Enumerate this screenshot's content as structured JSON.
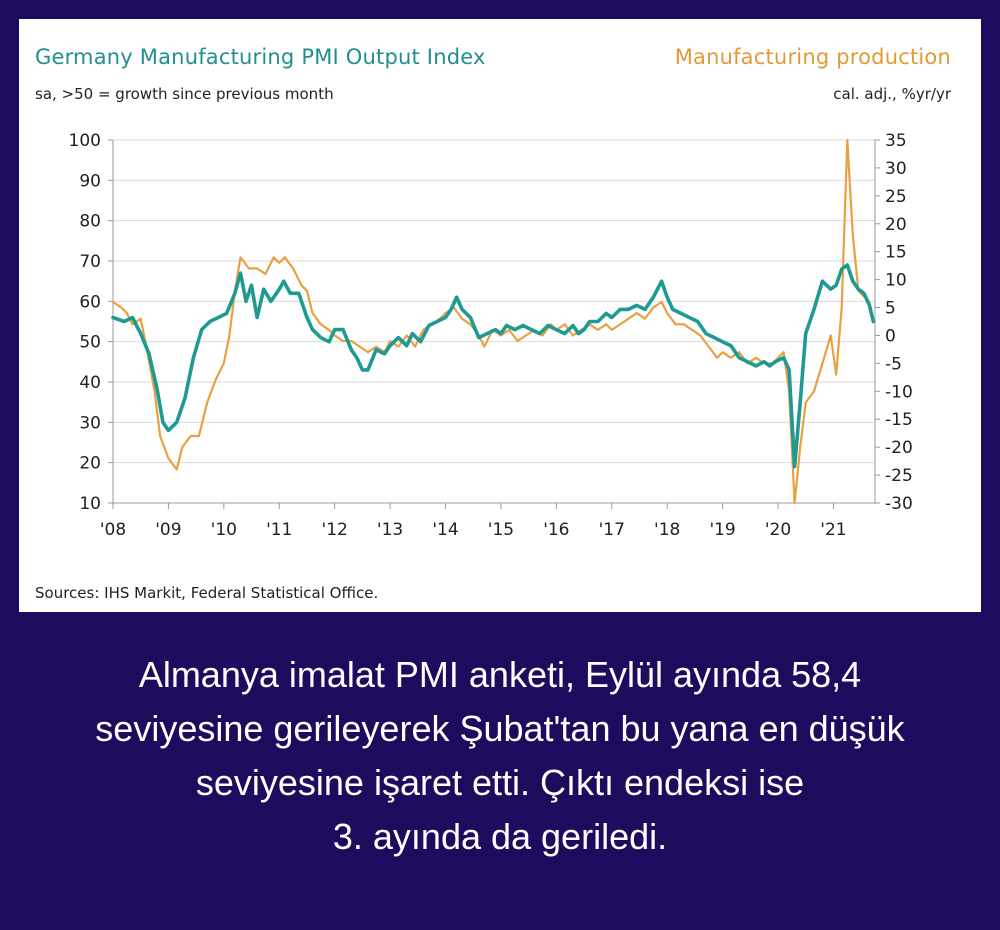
{
  "chart_data": {
    "type": "line",
    "title": "Germany Manufacturing PMI Output Index",
    "subtitle": "sa, >50 = growth since previous month",
    "title_right": "Manufacturing production",
    "subtitle_right": "cal. adj., %yr/yr",
    "source": "Sources: IHS Markit, Federal Statistical Office.",
    "x_range": [
      2008.0,
      2021.75
    ],
    "y_left": {
      "range": [
        10,
        100
      ],
      "ticks": [
        100,
        90,
        80,
        70,
        60,
        50,
        40,
        30,
        20,
        10
      ]
    },
    "y_right": {
      "range": [
        -30,
        35
      ],
      "ticks": [
        35,
        30,
        25,
        20,
        15,
        10,
        5,
        0,
        -5,
        -10,
        -15,
        -20,
        -25,
        -30
      ]
    },
    "x_ticks": [
      "'08",
      "'09",
      "'10",
      "'11",
      "'12",
      "'13",
      "'14",
      "'15",
      "'16",
      "'17",
      "'18",
      "'19",
      "'20",
      "'21"
    ],
    "grid": true,
    "series": [
      {
        "name": "Germany Manufacturing PMI Output Index",
        "axis": "left",
        "color": "#1f9a93",
        "points": [
          [
            2008.0,
            56
          ],
          [
            2008.2,
            55
          ],
          [
            2008.35,
            56
          ],
          [
            2008.5,
            52
          ],
          [
            2008.65,
            47
          ],
          [
            2008.8,
            38
          ],
          [
            2008.9,
            30
          ],
          [
            2009.0,
            28
          ],
          [
            2009.15,
            30
          ],
          [
            2009.3,
            36
          ],
          [
            2009.45,
            46
          ],
          [
            2009.6,
            53
          ],
          [
            2009.75,
            55
          ],
          [
            2009.9,
            56
          ],
          [
            2010.05,
            57
          ],
          [
            2010.2,
            62
          ],
          [
            2010.3,
            67
          ],
          [
            2010.4,
            60
          ],
          [
            2010.5,
            64
          ],
          [
            2010.6,
            56
          ],
          [
            2010.72,
            63
          ],
          [
            2010.85,
            60
          ],
          [
            2011.0,
            63
          ],
          [
            2011.08,
            65
          ],
          [
            2011.2,
            62
          ],
          [
            2011.35,
            62
          ],
          [
            2011.5,
            56
          ],
          [
            2011.6,
            53
          ],
          [
            2011.75,
            51
          ],
          [
            2011.9,
            50
          ],
          [
            2012.0,
            53
          ],
          [
            2012.15,
            53
          ],
          [
            2012.3,
            48
          ],
          [
            2012.4,
            46
          ],
          [
            2012.5,
            43
          ],
          [
            2012.6,
            43
          ],
          [
            2012.75,
            48
          ],
          [
            2012.9,
            47
          ],
          [
            2013.0,
            49
          ],
          [
            2013.15,
            51
          ],
          [
            2013.3,
            49
          ],
          [
            2013.4,
            52
          ],
          [
            2013.55,
            50
          ],
          [
            2013.7,
            54
          ],
          [
            2013.85,
            55
          ],
          [
            2014.0,
            56
          ],
          [
            2014.1,
            58
          ],
          [
            2014.2,
            61
          ],
          [
            2014.3,
            58
          ],
          [
            2014.45,
            56
          ],
          [
            2014.6,
            51
          ],
          [
            2014.75,
            52
          ],
          [
            2014.9,
            53
          ],
          [
            2015.0,
            52
          ],
          [
            2015.1,
            54
          ],
          [
            2015.25,
            53
          ],
          [
            2015.4,
            54
          ],
          [
            2015.55,
            53
          ],
          [
            2015.7,
            52
          ],
          [
            2015.85,
            54
          ],
          [
            2016.0,
            53
          ],
          [
            2016.15,
            52
          ],
          [
            2016.3,
            54
          ],
          [
            2016.4,
            52
          ],
          [
            2016.5,
            53
          ],
          [
            2016.6,
            55
          ],
          [
            2016.75,
            55
          ],
          [
            2016.9,
            57
          ],
          [
            2017.0,
            56
          ],
          [
            2017.15,
            58
          ],
          [
            2017.3,
            58
          ],
          [
            2017.45,
            59
          ],
          [
            2017.6,
            58
          ],
          [
            2017.75,
            61
          ],
          [
            2017.9,
            65
          ],
          [
            2018.0,
            61
          ],
          [
            2018.1,
            58
          ],
          [
            2018.25,
            57
          ],
          [
            2018.4,
            56
          ],
          [
            2018.55,
            55
          ],
          [
            2018.7,
            52
          ],
          [
            2018.85,
            51
          ],
          [
            2019.0,
            50
          ],
          [
            2019.15,
            49
          ],
          [
            2019.3,
            46
          ],
          [
            2019.45,
            45
          ],
          [
            2019.6,
            44
          ],
          [
            2019.75,
            45
          ],
          [
            2019.85,
            44
          ],
          [
            2019.95,
            45
          ],
          [
            2020.1,
            46
          ],
          [
            2020.2,
            43
          ],
          [
            2020.3,
            19
          ],
          [
            2020.4,
            35
          ],
          [
            2020.5,
            52
          ],
          [
            2020.65,
            58
          ],
          [
            2020.8,
            65
          ],
          [
            2020.95,
            63
          ],
          [
            2021.05,
            64
          ],
          [
            2021.15,
            68
          ],
          [
            2021.25,
            69
          ],
          [
            2021.35,
            65
          ],
          [
            2021.45,
            63
          ],
          [
            2021.55,
            62
          ],
          [
            2021.65,
            59
          ],
          [
            2021.72,
            55
          ]
        ]
      },
      {
        "name": "Manufacturing production",
        "axis": "right",
        "color": "#e8a040",
        "points": [
          [
            2008.0,
            6
          ],
          [
            2008.15,
            5
          ],
          [
            2008.25,
            4
          ],
          [
            2008.35,
            2
          ],
          [
            2008.5,
            3
          ],
          [
            2008.6,
            -2
          ],
          [
            2008.75,
            -10
          ],
          [
            2008.85,
            -18
          ],
          [
            2009.0,
            -22
          ],
          [
            2009.15,
            -24
          ],
          [
            2009.25,
            -20
          ],
          [
            2009.4,
            -18
          ],
          [
            2009.55,
            -18
          ],
          [
            2009.7,
            -12
          ],
          [
            2009.85,
            -8
          ],
          [
            2010.0,
            -5
          ],
          [
            2010.1,
            0
          ],
          [
            2010.2,
            8
          ],
          [
            2010.3,
            14
          ],
          [
            2010.45,
            12
          ],
          [
            2010.6,
            12
          ],
          [
            2010.75,
            11
          ],
          [
            2010.9,
            14
          ],
          [
            2011.0,
            13
          ],
          [
            2011.1,
            14
          ],
          [
            2011.25,
            12
          ],
          [
            2011.4,
            9
          ],
          [
            2011.5,
            8
          ],
          [
            2011.6,
            4
          ],
          [
            2011.75,
            2
          ],
          [
            2011.9,
            1
          ],
          [
            2012.0,
            0
          ],
          [
            2012.15,
            -1
          ],
          [
            2012.3,
            -1
          ],
          [
            2012.45,
            -2
          ],
          [
            2012.6,
            -3
          ],
          [
            2012.75,
            -2
          ],
          [
            2012.9,
            -3
          ],
          [
            2013.0,
            -1
          ],
          [
            2013.15,
            -2
          ],
          [
            2013.3,
            0
          ],
          [
            2013.45,
            -2
          ],
          [
            2013.6,
            1
          ],
          [
            2013.75,
            2
          ],
          [
            2013.9,
            3
          ],
          [
            2014.0,
            4
          ],
          [
            2014.15,
            5
          ],
          [
            2014.3,
            3
          ],
          [
            2014.45,
            2
          ],
          [
            2014.6,
            0
          ],
          [
            2014.7,
            -2
          ],
          [
            2014.85,
            1
          ],
          [
            2015.0,
            0
          ],
          [
            2015.15,
            1
          ],
          [
            2015.3,
            -1
          ],
          [
            2015.45,
            0
          ],
          [
            2015.6,
            1
          ],
          [
            2015.75,
            0
          ],
          [
            2015.9,
            2
          ],
          [
            2016.0,
            1
          ],
          [
            2016.15,
            2
          ],
          [
            2016.3,
            0
          ],
          [
            2016.45,
            1
          ],
          [
            2016.6,
            2
          ],
          [
            2016.75,
            1
          ],
          [
            2016.9,
            2
          ],
          [
            2017.0,
            1
          ],
          [
            2017.15,
            2
          ],
          [
            2017.3,
            3
          ],
          [
            2017.45,
            4
          ],
          [
            2017.6,
            3
          ],
          [
            2017.75,
            5
          ],
          [
            2017.9,
            6
          ],
          [
            2018.0,
            4
          ],
          [
            2018.15,
            2
          ],
          [
            2018.3,
            2
          ],
          [
            2018.45,
            1
          ],
          [
            2018.6,
            0
          ],
          [
            2018.75,
            -2
          ],
          [
            2018.9,
            -4
          ],
          [
            2019.0,
            -3
          ],
          [
            2019.15,
            -4
          ],
          [
            2019.3,
            -3
          ],
          [
            2019.45,
            -5
          ],
          [
            2019.6,
            -4
          ],
          [
            2019.75,
            -5
          ],
          [
            2019.9,
            -5
          ],
          [
            2020.0,
            -4
          ],
          [
            2020.1,
            -3
          ],
          [
            2020.2,
            -10
          ],
          [
            2020.3,
            -30
          ],
          [
            2020.4,
            -20
          ],
          [
            2020.5,
            -12
          ],
          [
            2020.65,
            -10
          ],
          [
            2020.8,
            -5
          ],
          [
            2020.95,
            0
          ],
          [
            2021.05,
            -7
          ],
          [
            2021.15,
            5
          ],
          [
            2021.25,
            35
          ],
          [
            2021.35,
            18
          ],
          [
            2021.45,
            8
          ],
          [
            2021.55,
            7
          ],
          [
            2021.65,
            6
          ]
        ]
      }
    ]
  },
  "caption": {
    "line1": "Almanya imalat PMI anketi, Eylül ayında 58,4",
    "line2": "seviyesine gerileyerek Şubat'tan bu yana en düşük",
    "line3": "seviyesine işaret etti. Çıktı endeksi ise",
    "line4": "3. ayında da geriledi."
  }
}
